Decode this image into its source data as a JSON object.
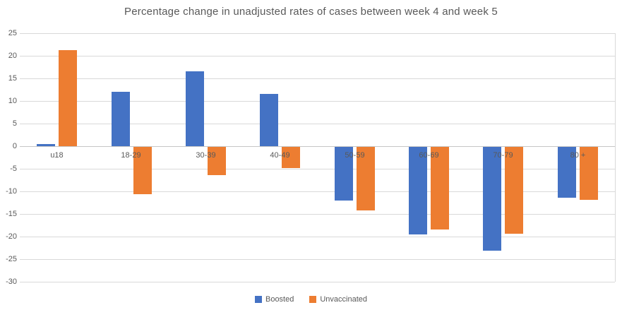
{
  "chart_data": {
    "type": "bar",
    "title": "Percentage change in unadjusted rates of cases between week 4 and week 5",
    "categories": [
      "u18",
      "18-29",
      "30-39",
      "40-49",
      "50-59",
      "60-69",
      "70-79",
      "80 +"
    ],
    "series": [
      {
        "name": "Boosted",
        "color": "#4472c4",
        "values": [
          0.5,
          12.0,
          16.6,
          11.6,
          -11.9,
          -19.3,
          -23.0,
          -11.3
        ]
      },
      {
        "name": "Unvaccinated",
        "color": "#ed7d31",
        "values": [
          21.3,
          -10.5,
          -6.2,
          -4.7,
          -14.0,
          -18.3,
          -19.2,
          -11.7
        ]
      }
    ],
    "xlabel": "",
    "ylabel": "",
    "ylim": [
      -30,
      25
    ],
    "ytick_step": 5,
    "yticks": [
      "25",
      "20",
      "15",
      "10",
      "5",
      "0",
      "-5",
      "-10",
      "-15",
      "-20",
      "-25",
      "-30"
    ],
    "grid": true,
    "legend_position": "bottom"
  },
  "colors": {
    "background": "#ffffff",
    "gridline": "#d9d9d9",
    "zero_line": "#c6c6c6",
    "text": "#595959",
    "boosted": "#4472c4",
    "unvaccinated": "#ed7d31"
  }
}
